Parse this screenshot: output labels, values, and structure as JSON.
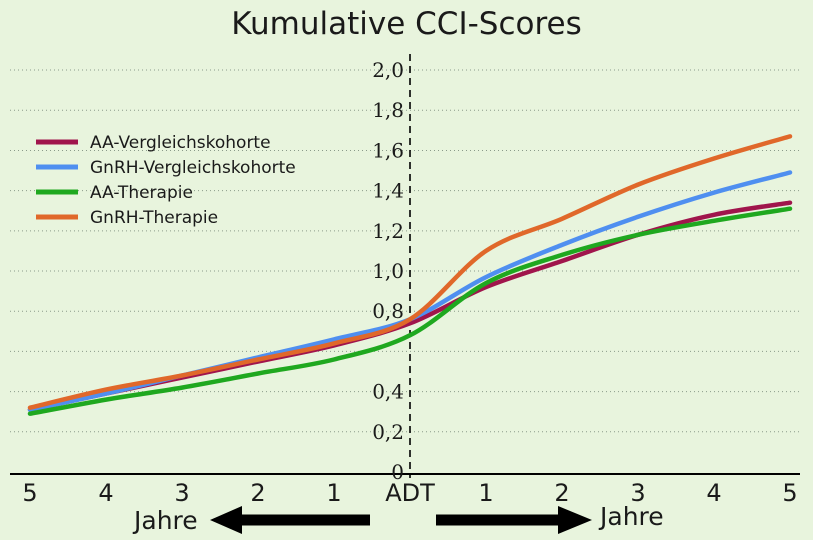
{
  "chart_data": {
    "type": "line",
    "title": "Kumulative CCI-Scores",
    "xlabel": "",
    "ylabel": "",
    "x_tick_labels": [
      "5",
      "4",
      "3",
      "2",
      "1",
      "ADT",
      "1",
      "2",
      "3",
      "4",
      "5"
    ],
    "x_unit_left": "Jahre",
    "x_unit_right": "Jahre",
    "x_values_years_relative_to_adt": [
      -5,
      -4,
      -3,
      -2,
      -1,
      0,
      1,
      2,
      3,
      4,
      5
    ],
    "y_ticks": [
      "0",
      "0,2",
      "0,4",
      "0,8",
      "1,0",
      "1,2",
      "1,4",
      "1,6",
      "1,8",
      "2,0"
    ],
    "ylim": [
      0,
      2.05
    ],
    "grid": "horizontal dotted",
    "legend_position": "left",
    "series": [
      {
        "name": "AA-Vergleichskohorte",
        "color": "#a0154c",
        "values": [
          0.31,
          0.39,
          0.47,
          0.55,
          0.63,
          0.74,
          0.92,
          1.05,
          1.18,
          1.28,
          1.34
        ]
      },
      {
        "name": "GnRH-Vergleichskohorte",
        "color": "#4f8ff0",
        "values": [
          0.31,
          0.39,
          0.48,
          0.57,
          0.66,
          0.76,
          0.97,
          1.13,
          1.27,
          1.39,
          1.49
        ]
      },
      {
        "name": "AA-Therapie",
        "color": "#1fa81f",
        "values": [
          0.29,
          0.36,
          0.42,
          0.49,
          0.56,
          0.68,
          0.94,
          1.08,
          1.18,
          1.25,
          1.31
        ]
      },
      {
        "name": "GnRH-Therapie",
        "color": "#e0682a",
        "values": [
          0.32,
          0.41,
          0.48,
          0.56,
          0.64,
          0.76,
          1.1,
          1.26,
          1.43,
          1.56,
          1.67
        ]
      }
    ]
  }
}
